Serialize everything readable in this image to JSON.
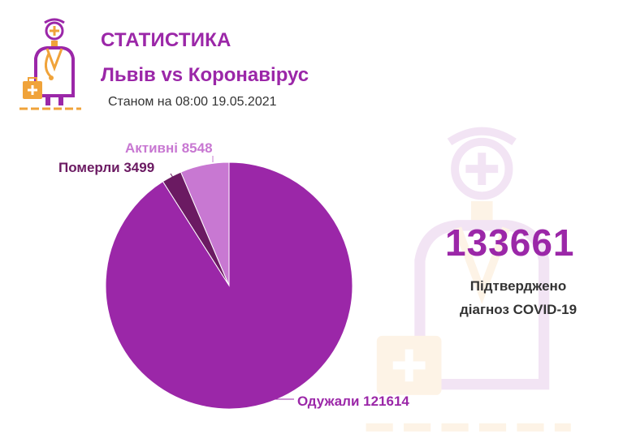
{
  "header": {
    "title": "СТАТИСТИКА",
    "subtitle": "Львів vs Коронавірус",
    "date": "Станом на 08:00 19.05.2021"
  },
  "summary": {
    "total": "133661",
    "caption_line1": "Підтверджено",
    "caption_line2": "діагноз COVID-19"
  },
  "colors": {
    "accent": "#9b27a8",
    "recovered": "#9b27a8",
    "died": "#6b1a62",
    "active": "#c878d2",
    "logo_orange": "#f0a33a",
    "logo_purple": "#9b27a8"
  },
  "icons": {
    "logo": "doctor-icon",
    "watermark": "doctor-watermark-icon"
  },
  "chart_data": {
    "type": "pie",
    "slices": [
      {
        "label": "Активні 8548",
        "value": 8548,
        "color": "#c878d2"
      },
      {
        "label": "Померли 3499",
        "value": 3499,
        "color": "#6b1a62"
      },
      {
        "label": "Одужали 121614",
        "value": 121614,
        "color": "#9b27a8"
      }
    ]
  }
}
